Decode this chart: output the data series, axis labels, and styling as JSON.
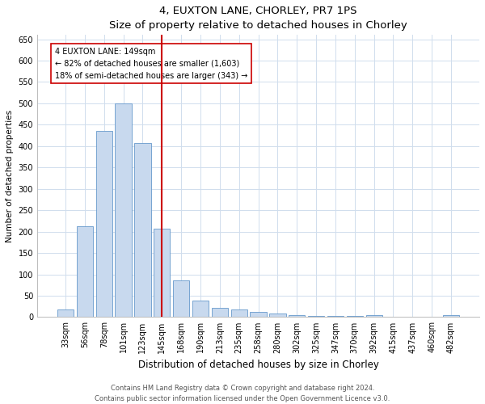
{
  "title1": "4, EUXTON LANE, CHORLEY, PR7 1PS",
  "title2": "Size of property relative to detached houses in Chorley",
  "xlabel": "Distribution of detached houses by size in Chorley",
  "ylabel": "Number of detached properties",
  "categories": [
    "33sqm",
    "56sqm",
    "78sqm",
    "101sqm",
    "123sqm",
    "145sqm",
    "168sqm",
    "190sqm",
    "213sqm",
    "235sqm",
    "258sqm",
    "280sqm",
    "302sqm",
    "325sqm",
    "347sqm",
    "370sqm",
    "392sqm",
    "415sqm",
    "437sqm",
    "460sqm",
    "482sqm"
  ],
  "values": [
    18,
    213,
    435,
    500,
    407,
    207,
    86,
    38,
    22,
    18,
    13,
    8,
    5,
    3,
    3,
    2,
    4,
    1,
    1,
    1,
    5
  ],
  "bar_color": "#c8d9ee",
  "bar_edge_color": "#6699cc",
  "vline_color": "#cc0000",
  "annotation_text": "4 EUXTON LANE: 149sqm\n← 82% of detached houses are smaller (1,603)\n18% of semi-detached houses are larger (343) →",
  "annotation_box_color": "#ffffff",
  "annotation_box_edge": "#cc0000",
  "ylim": [
    0,
    660
  ],
  "yticks": [
    0,
    50,
    100,
    150,
    200,
    250,
    300,
    350,
    400,
    450,
    500,
    550,
    600,
    650
  ],
  "footnote": "Contains HM Land Registry data © Crown copyright and database right 2024.\nContains public sector information licensed under the Open Government Licence v3.0.",
  "bg_color": "#ffffff",
  "grid_color": "#d0dded",
  "title1_fontsize": 9.5,
  "title2_fontsize": 8.5,
  "xlabel_fontsize": 8.5,
  "ylabel_fontsize": 7.5,
  "tick_fontsize": 7,
  "annot_fontsize": 7,
  "footnote_fontsize": 6
}
